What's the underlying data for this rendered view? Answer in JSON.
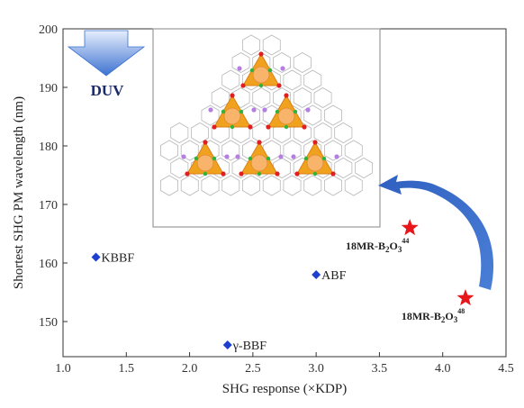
{
  "chart_data": {
    "type": "scatter",
    "xlabel": "SHG response (×KDP)",
    "ylabel": "Shortest SHG PM wavelength (nm)",
    "xlim": [
      1.0,
      4.5
    ],
    "ylim": [
      144,
      200
    ],
    "x_ticks": [
      "1.0",
      "1.5",
      "2.0",
      "2.5",
      "3.0",
      "3.5",
      "4.0",
      "4.5"
    ],
    "y_ticks": [
      "150",
      "160",
      "170",
      "180",
      "190",
      "200"
    ],
    "grid": false,
    "points": [
      {
        "label": "KBBF",
        "x": 1.26,
        "y": 161,
        "marker": "diamond",
        "color": "#1f3fcf"
      },
      {
        "label": "ABF",
        "x": 3.0,
        "y": 158,
        "marker": "diamond",
        "color": "#1f3fcf"
      },
      {
        "label": "γ-BBF",
        "x": 2.3,
        "y": 146,
        "marker": "diamond",
        "color": "#1f3fcf"
      },
      {
        "label": "18MR-B",
        "sub": "2",
        "mid": "O",
        "sub2": "3",
        "sup": "44",
        "x": 3.74,
        "y": 166,
        "marker": "star",
        "color": "#e8161b"
      },
      {
        "label": "18MR-B",
        "sub": "2",
        "mid": "O",
        "sub2": "3",
        "sup": "48",
        "x": 4.18,
        "y": 154,
        "marker": "star",
        "color": "#e8161b"
      }
    ],
    "annotations": {
      "duv_text": "DUV",
      "arrow_color": "#3a68c4"
    }
  }
}
